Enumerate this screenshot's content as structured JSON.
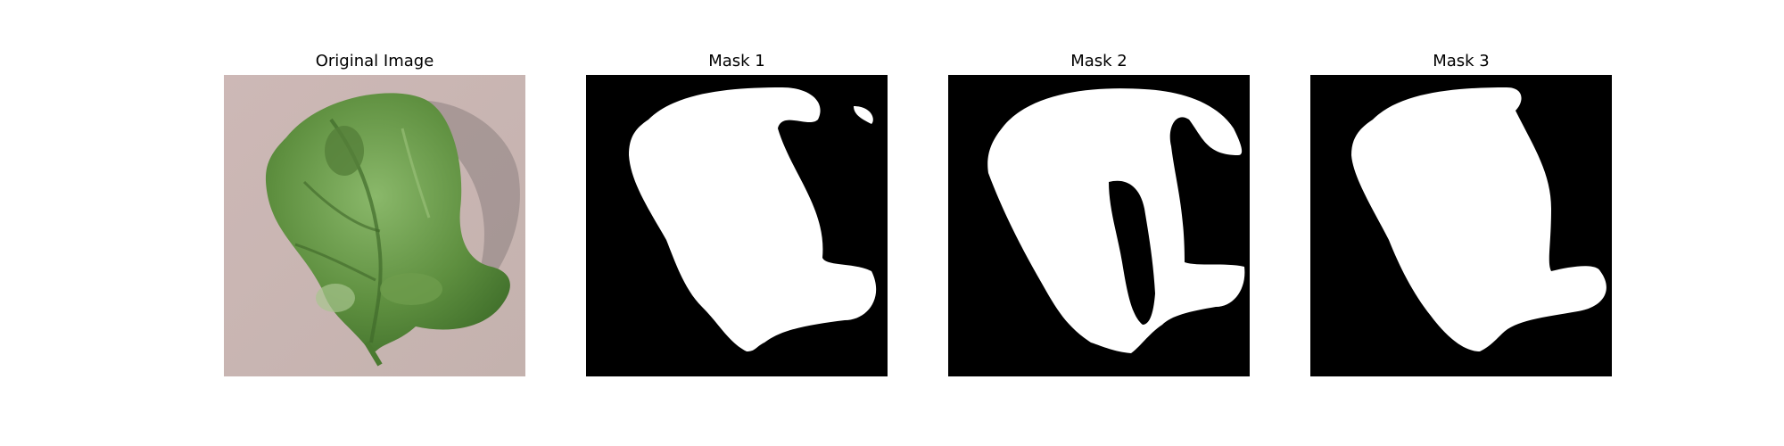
{
  "figure": {
    "panels": [
      {
        "title": "Original Image",
        "kind": "photo",
        "subject": "leaf-photo"
      },
      {
        "title": "Mask 1",
        "kind": "mask",
        "subject": "leaf-mask"
      },
      {
        "title": "Mask 2",
        "kind": "mask",
        "subject": "leaf-mask"
      },
      {
        "title": "Mask 3",
        "kind": "mask",
        "subject": "leaf-mask"
      }
    ]
  },
  "colors": {
    "mask_background": "#000000",
    "mask_foreground": "#ffffff",
    "photo_background": "#c8b8b5",
    "leaf_green": "#6a9a4a"
  }
}
